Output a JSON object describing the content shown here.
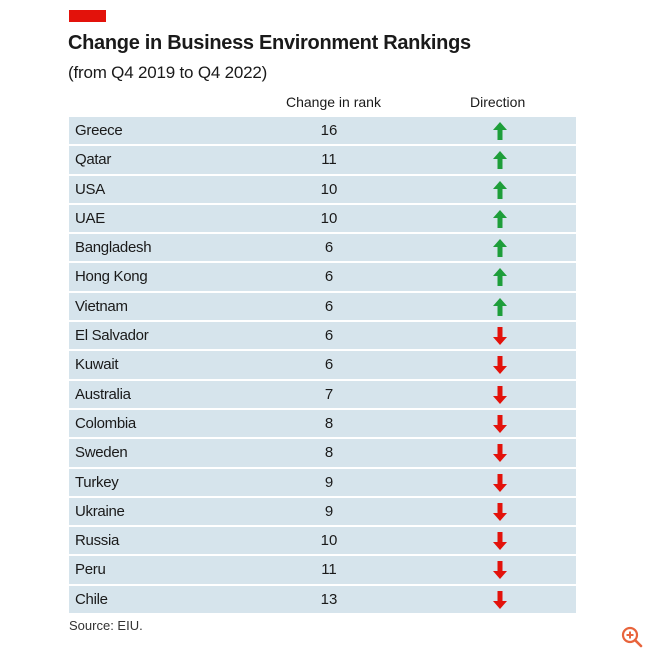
{
  "header": {
    "title": "Change in Business Environment Rankings",
    "subtitle": "(from Q4 2019 to Q4 2022)"
  },
  "columns": {
    "rank": "Change in rank",
    "direction": "Direction"
  },
  "source": "Source: EIU.",
  "icons": {
    "zoom": "zoom-in-icon",
    "up": "arrow-up-icon",
    "down": "arrow-down-icon"
  },
  "colors": {
    "accent": "#e3120b",
    "row_bg": "#d6e4ec",
    "up": "#1e9e3a",
    "down": "#e3120b",
    "zoom": "#e8643c"
  },
  "chart_data": {
    "type": "table",
    "title": "Change in Business Environment Rankings",
    "subtitle": "(from Q4 2019 to Q4 2022)",
    "columns": [
      "",
      "Change in rank",
      "Direction"
    ],
    "rows": [
      {
        "country": "Greece",
        "change": "16",
        "direction": "up"
      },
      {
        "country": "Qatar",
        "change": "11",
        "direction": "up"
      },
      {
        "country": "USA",
        "change": "10",
        "direction": "up"
      },
      {
        "country": "UAE",
        "change": "10",
        "direction": "up"
      },
      {
        "country": "Bangladesh",
        "change": "6",
        "direction": "up"
      },
      {
        "country": "Hong Kong",
        "change": "6",
        "direction": "up"
      },
      {
        "country": "Vietnam",
        "change": "6",
        "direction": "up"
      },
      {
        "country": "El Salvador",
        "change": "6",
        "direction": "down"
      },
      {
        "country": "Kuwait",
        "change": "6",
        "direction": "down"
      },
      {
        "country": "Australia",
        "change": "7",
        "direction": "down"
      },
      {
        "country": "Colombia",
        "change": "8",
        "direction": "down"
      },
      {
        "country": "Sweden",
        "change": "8",
        "direction": "down"
      },
      {
        "country": "Turkey",
        "change": "9",
        "direction": "down"
      },
      {
        "country": "Ukraine",
        "change": "9",
        "direction": "down"
      },
      {
        "country": "Russia",
        "change": "10",
        "direction": "down"
      },
      {
        "country": "Peru",
        "change": "11",
        "direction": "down"
      },
      {
        "country": "Chile",
        "change": "13",
        "direction": "down"
      }
    ],
    "source": "Source: EIU."
  }
}
